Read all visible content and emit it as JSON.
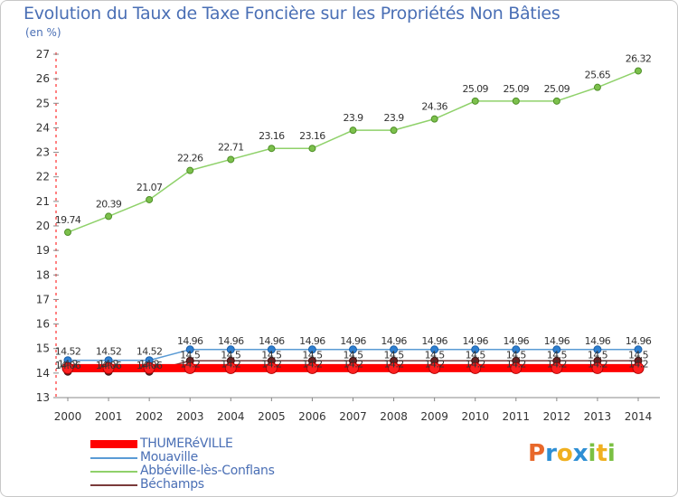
{
  "title": "Evolution du Taux de Taxe Foncière sur les Propriétés Non Bâties",
  "unit_label": "(en %)",
  "logo": {
    "p": "P",
    "r": "r",
    "o": "o",
    "x": "x",
    "i1": "i",
    "t": "t",
    "i2": "i",
    "colors": {
      "p": "#e8682a",
      "r": "#2e8fd4",
      "o": "#f0b020",
      "x": "#2e8fd4",
      "i1": "#7bc043",
      "t": "#f0b020",
      "i2": "#7bc043"
    }
  },
  "chart_data": {
    "type": "line",
    "title": "Evolution du Taux de Taxe Foncière sur les Propriétés Non Bâties",
    "ylabel": "(en %)",
    "xlabel": "",
    "ylim": [
      13,
      27
    ],
    "yticks": [
      13,
      14,
      15,
      16,
      17,
      18,
      19,
      20,
      21,
      22,
      23,
      24,
      25,
      26,
      27
    ],
    "categories": [
      "2000",
      "2001",
      "2002",
      "2003",
      "2004",
      "2005",
      "2006",
      "2007",
      "2008",
      "2009",
      "2010",
      "2011",
      "2012",
      "2013",
      "2014"
    ],
    "series": [
      {
        "name": "THUMERéVILLE",
        "color": "#ff0000",
        "values": [
          14.2,
          14.2,
          14.2,
          14.2,
          14.2,
          14.2,
          14.2,
          14.2,
          14.2,
          14.2,
          14.2,
          14.2,
          14.2,
          14.2,
          14.2
        ],
        "labels": [
          "14.2",
          "14.2",
          "14.2",
          "14.2",
          "14.2",
          "14.2",
          "14.2",
          "14.2",
          "14.2",
          "14.2",
          "14.2",
          "14.2",
          "14.2",
          "14.2",
          "14.2"
        ]
      },
      {
        "name": "Mouaville",
        "color": "#5a9bd5",
        "values": [
          14.52,
          14.52,
          14.52,
          14.96,
          14.96,
          14.96,
          14.96,
          14.96,
          14.96,
          14.96,
          14.96,
          14.96,
          14.96,
          14.96,
          14.96
        ],
        "labels": [
          "14.52",
          "14.52",
          "14.52",
          "14.96",
          "14.96",
          "14.96",
          "14.96",
          "14.96",
          "14.96",
          "14.96",
          "14.96",
          "14.96",
          "14.96",
          "14.96",
          "14.96"
        ]
      },
      {
        "name": "Abbéville-lès-Conflans",
        "color": "#8fd16a",
        "values": [
          19.74,
          20.39,
          21.07,
          22.26,
          22.71,
          23.16,
          23.16,
          23.9,
          23.9,
          24.36,
          25.09,
          25.09,
          25.09,
          25.65,
          26.32
        ],
        "labels": [
          "19.74",
          "20.39",
          "21.07",
          "22.26",
          "22.71",
          "23.16",
          "23.16",
          "23.9",
          "23.9",
          "24.36",
          "25.09",
          "25.09",
          "25.09",
          "25.65",
          "26.32"
        ]
      },
      {
        "name": "Béchamps",
        "color": "#7a3a3a",
        "values": [
          14.06,
          14.06,
          14.06,
          14.5,
          14.5,
          14.5,
          14.5,
          14.5,
          14.5,
          14.5,
          14.5,
          14.5,
          14.5,
          14.5,
          14.5
        ],
        "labels": [
          "14.06",
          "14.06",
          "14.06",
          "14.5",
          "14.5",
          "14.5",
          "14.5",
          "14.5",
          "14.5",
          "14.5",
          "14.5",
          "14.5",
          "14.5",
          "14.5",
          "14.5"
        ]
      }
    ],
    "legend_position": "bottom-left",
    "grid": false
  }
}
